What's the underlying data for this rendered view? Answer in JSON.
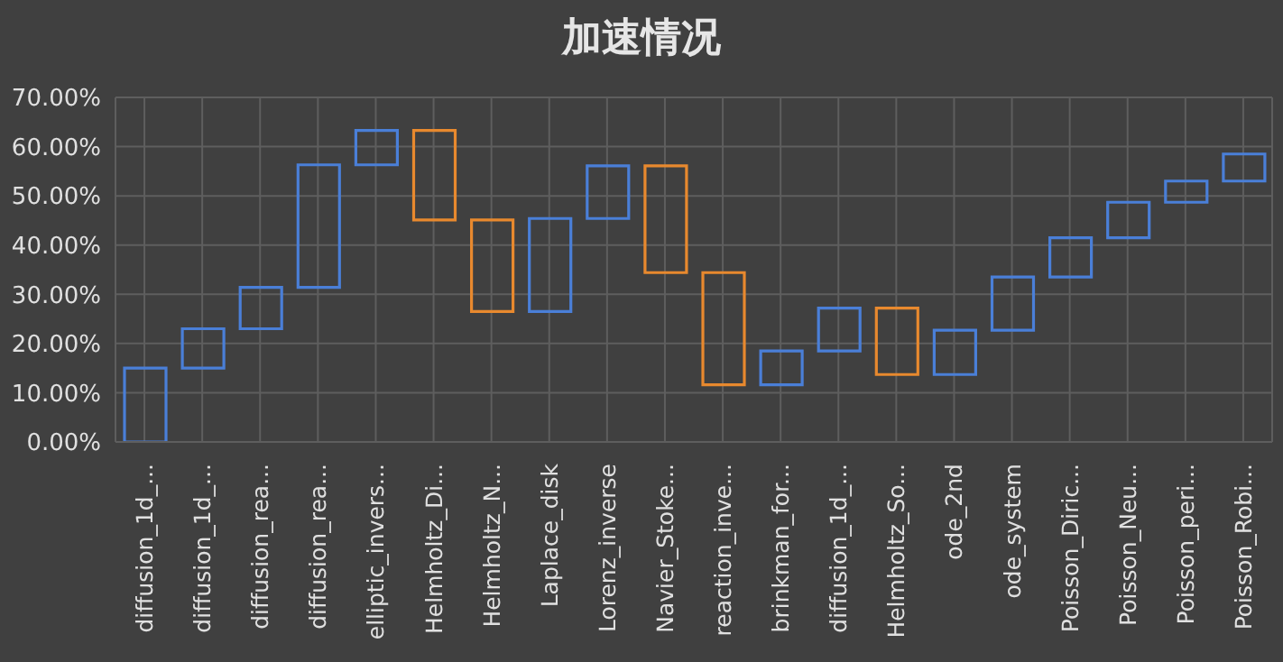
{
  "chart_data": {
    "type": "bar",
    "title": "加速情况",
    "categories": [
      "diffusion_1d_...",
      "diffusion_1d_...",
      "diffusion_rea...",
      "diffusion_rea...",
      "elliptic_invers...",
      "Helmholtz_Di...",
      "Helmholtz_N...",
      "Laplace_disk",
      "Lorenz_inverse",
      "Navier_Stoke...",
      "reaction_inve...",
      "brinkman_for...",
      "diffusion_1d_...",
      "Helmholtz_So...",
      "ode_2nd",
      "ode_system",
      "Poisson_Diric...",
      "Poisson_Neu...",
      "Poisson_peri...",
      "Poisson_Robi..."
    ],
    "base": [
      0,
      15,
      23,
      31.4,
      56.3,
      63.3,
      45.1,
      26.5,
      45.4,
      56.1,
      34.4,
      11.6,
      18.5,
      27.2,
      13.7,
      22.7,
      33.5,
      41.5,
      48.7,
      53.0
    ],
    "values": [
      15,
      8,
      8.4,
      24.9,
      7,
      -18.2,
      -18.6,
      18.9,
      10.7,
      -21.7,
      -22.8,
      6.9,
      8.7,
      -13.5,
      9,
      10.8,
      8,
      7.2,
      4.3,
      5.5
    ],
    "colors": [
      "#4a7fd8",
      "#4a7fd8",
      "#4a7fd8",
      "#4a7fd8",
      "#4a7fd8",
      "#e8892e",
      "#e8892e",
      "#4a7fd8",
      "#4a7fd8",
      "#e8892e",
      "#e8892e",
      "#4a7fd8",
      "#4a7fd8",
      "#e8892e",
      "#4a7fd8",
      "#4a7fd8",
      "#4a7fd8",
      "#4a7fd8",
      "#4a7fd8",
      "#4a7fd8"
    ],
    "ylim": [
      0,
      70
    ],
    "yticks": [
      {
        "value": 0,
        "label": "0.00%"
      },
      {
        "value": 10,
        "label": "10.00%"
      },
      {
        "value": 20,
        "label": "20.00%"
      },
      {
        "value": 30,
        "label": "30.00%"
      },
      {
        "value": 40,
        "label": "40.00%"
      },
      {
        "value": 50,
        "label": "50.00%"
      },
      {
        "value": 60,
        "label": "60.00%"
      },
      {
        "value": 70,
        "label": "70.00%"
      }
    ],
    "grid": true
  }
}
